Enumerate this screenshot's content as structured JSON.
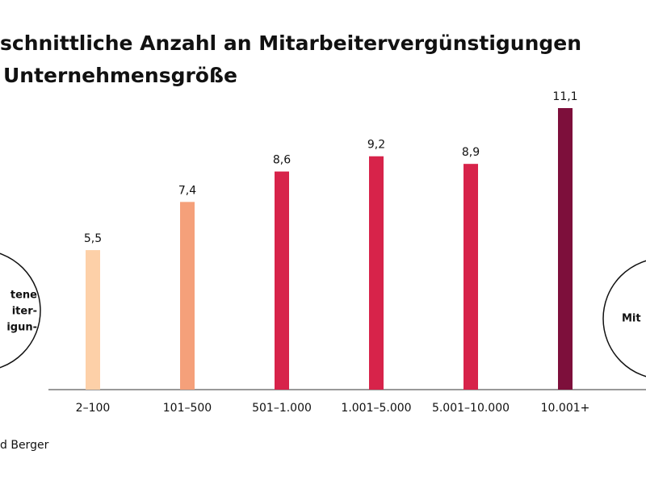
{
  "chart_data": {
    "type": "bar",
    "title": [
      "schnittliche Anzahl an Mitarbeitervergünstigungen",
      "Unternehmensgröße"
    ],
    "categories": [
      "2–100",
      "101–500",
      "501–1.000",
      "1.001–5.000",
      "5.001–10.000",
      "10.001+"
    ],
    "values": [
      5.5,
      7.4,
      8.6,
      9.2,
      8.9,
      11.1
    ],
    "value_labels": [
      "5,5",
      "7,4",
      "8,6",
      "9,2",
      "8,9",
      "11,1"
    ],
    "colors": [
      "#fdd0a8",
      "#f5a07a",
      "#d7234a",
      "#d7234a",
      "#d7234a",
      "#7d0f3b"
    ],
    "annotations": {
      "left": [
        "tene",
        "iter-",
        "igun-"
      ],
      "right": [
        "Mit"
      ]
    },
    "source": "d Berger"
  }
}
